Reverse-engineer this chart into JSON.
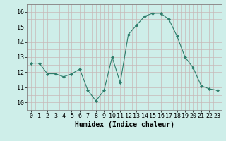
{
  "x": [
    0,
    1,
    2,
    3,
    4,
    5,
    6,
    7,
    8,
    9,
    10,
    11,
    12,
    13,
    14,
    15,
    16,
    17,
    18,
    19,
    20,
    21,
    22,
    23
  ],
  "y": [
    12.6,
    12.6,
    11.9,
    11.9,
    11.7,
    11.9,
    12.2,
    10.8,
    10.1,
    10.8,
    13.0,
    11.3,
    14.5,
    15.1,
    15.7,
    15.9,
    15.9,
    15.5,
    14.4,
    13.0,
    12.3,
    11.1,
    10.9,
    10.8
  ],
  "line_color": "#2d7d6b",
  "marker": "D",
  "marker_size": 2.0,
  "bg_color": "#ceeee9",
  "grid_color": "#c8b8b8",
  "xlabel": "Humidex (Indice chaleur)",
  "xlabel_fontsize": 7,
  "ylabel_ticks": [
    10,
    11,
    12,
    13,
    14,
    15,
    16
  ],
  "xlim": [
    -0.5,
    23.5
  ],
  "ylim": [
    9.7,
    16.4
  ],
  "tick_fontsize": 6,
  "xtick_labels": [
    "0",
    "1",
    "2",
    "3",
    "4",
    "5",
    "6",
    "7",
    "8",
    "9",
    "10",
    "11",
    "12",
    "13",
    "14",
    "15",
    "16",
    "17",
    "18",
    "19",
    "20",
    "21",
    "22",
    "23"
  ]
}
